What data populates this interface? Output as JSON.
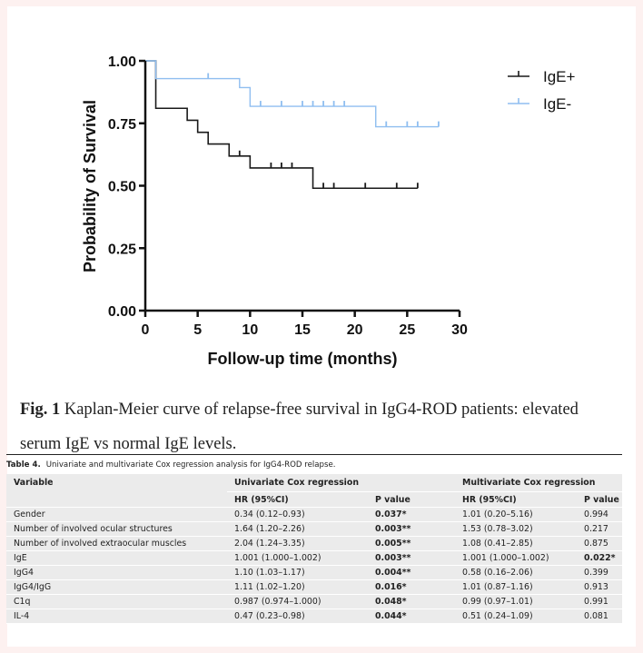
{
  "chart_data": {
    "type": "line",
    "subtype": "kaplan-meier step",
    "xlabel": "Follow-up time (months)",
    "ylabel": "Probability of Survival",
    "xlim": [
      0,
      30
    ],
    "ylim": [
      0,
      1
    ],
    "xticks": [
      "0",
      "5",
      "10",
      "15",
      "20",
      "25",
      "30"
    ],
    "yticks": [
      "0.00",
      "0.25",
      "0.50",
      "0.75",
      "1.00"
    ],
    "xtick_values": [
      0,
      5,
      10,
      15,
      20,
      25,
      30
    ],
    "ytick_values": [
      0,
      0.25,
      0.5,
      0.75,
      1.0
    ],
    "grid": false,
    "legend_position": "top-right",
    "series": [
      {
        "name": "IgE+",
        "color": "#1a1a1a",
        "steps": [
          [
            0,
            1.0
          ],
          [
            1,
            0.81
          ],
          [
            4,
            0.762
          ],
          [
            5,
            0.714
          ],
          [
            6,
            0.667
          ],
          [
            8,
            0.619
          ],
          [
            10,
            0.571
          ],
          [
            16,
            0.49
          ]
        ],
        "end_time": 26,
        "censored": [
          9,
          12,
          13,
          14,
          17,
          18,
          21,
          24,
          26
        ]
      },
      {
        "name": "IgE-",
        "color": "#8fbef0",
        "steps": [
          [
            0,
            1.0
          ],
          [
            1,
            0.929
          ],
          [
            9,
            0.893
          ],
          [
            10,
            0.818
          ],
          [
            22,
            0.736
          ]
        ],
        "end_time": 28,
        "censored": [
          6,
          11,
          13,
          15,
          16,
          17,
          18,
          19,
          23,
          25,
          26,
          28
        ]
      }
    ]
  },
  "figure_caption": {
    "label": "Fig. 1",
    "text": " Kaplan-Meier curve of relapse-free survival in IgG4-ROD patients: elevated serum IgE vs normal IgE levels."
  },
  "table": {
    "label": "Table 4.",
    "title": "Univariate and multivariate Cox regression analysis for IgG4-ROD relapse.",
    "header": {
      "variable": "Variable",
      "univariate": "Univariate Cox regression",
      "multivariate": "Multivariate Cox regression",
      "hr": "HR (95%CI)",
      "p": "P value"
    },
    "rows": [
      {
        "variable": "Gender",
        "uni_hr": "0.34 (0.12–0.93)",
        "uni_p": "0.037*",
        "multi_hr": "1.01 (0.20–5.16)",
        "multi_p": "0.994"
      },
      {
        "variable": "Number of involved ocular structures",
        "uni_hr": "1.64 (1.20–2.26)",
        "uni_p": "0.003**",
        "multi_hr": "1.53 (0.78–3.02)",
        "multi_p": "0.217"
      },
      {
        "variable": "Number of involved extraocular muscles",
        "uni_hr": "2.04 (1.24–3.35)",
        "uni_p": "0.005**",
        "multi_hr": "1.08 (0.41–2.85)",
        "multi_p": "0.875"
      },
      {
        "variable": "IgE",
        "uni_hr": "1.001 (1.000–1.002)",
        "uni_p": "0.003**",
        "multi_hr": "1.001 (1.000–1.002)",
        "multi_p": "0.022*"
      },
      {
        "variable": "IgG4",
        "uni_hr": "1.10 (1.03–1.17)",
        "uni_p": "0.004**",
        "multi_hr": "0.58 (0.16–2.06)",
        "multi_p": "0.399"
      },
      {
        "variable": "IgG4/IgG",
        "uni_hr": "1.11 (1.02–1.20)",
        "uni_p": "0.016*",
        "multi_hr": "1.01 (0.87–1.16)",
        "multi_p": "0.913"
      },
      {
        "variable": "C1q",
        "uni_hr": "0.987 (0.974–1.000)",
        "uni_p": "0.048*",
        "multi_hr": "0.99 (0.97–1.01)",
        "multi_p": "0.991"
      },
      {
        "variable": "IL-4",
        "uni_hr": "0.47 (0.23–0.98)",
        "uni_p": "0.044*",
        "multi_hr": "0.51 (0.24–1.09)",
        "multi_p": "0.081"
      }
    ]
  }
}
